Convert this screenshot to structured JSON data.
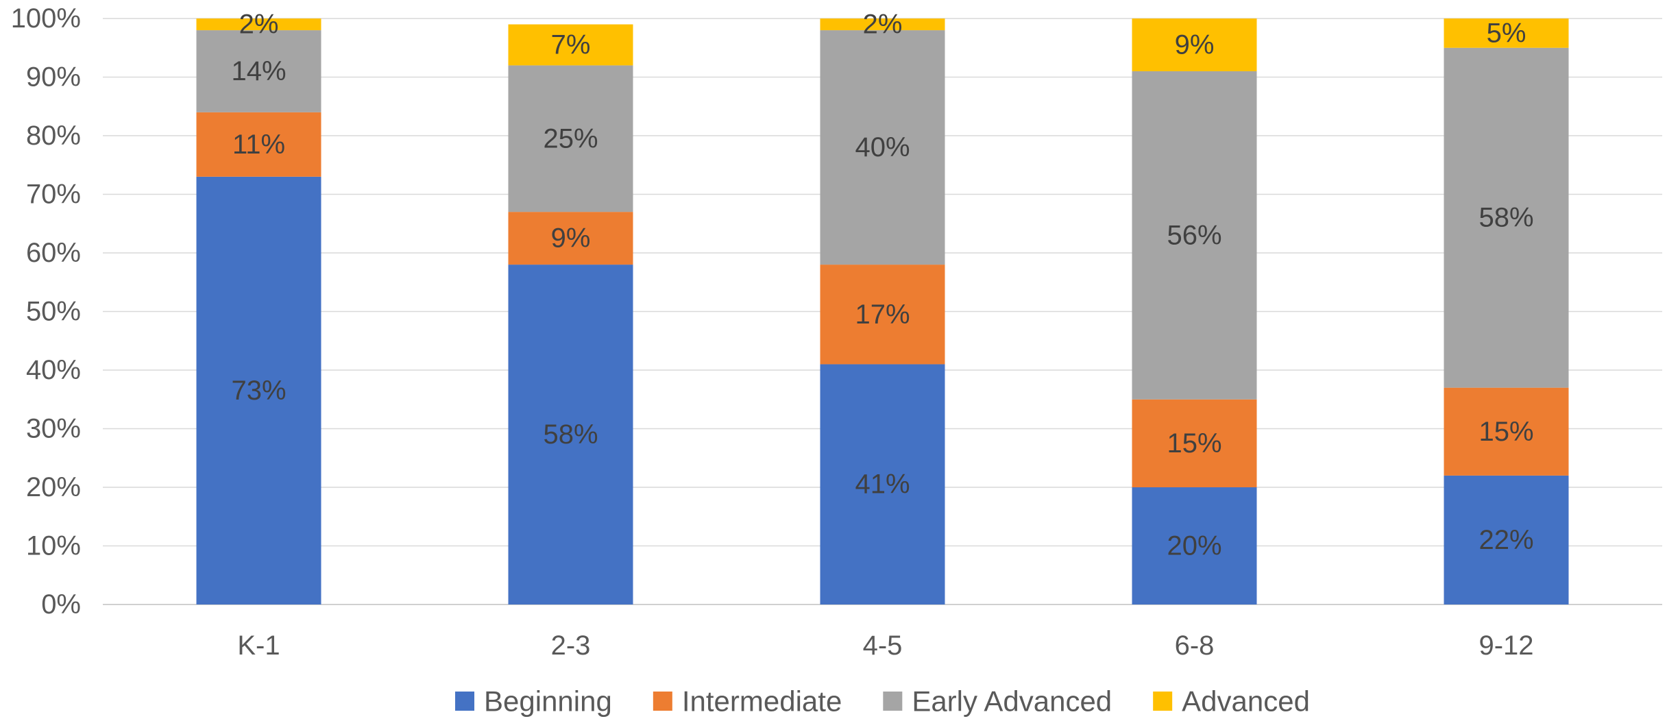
{
  "chart_data": {
    "type": "bar",
    "stacked": true,
    "percent": true,
    "title": "",
    "xlabel": "",
    "ylabel": "",
    "categories": [
      "K-1",
      "2-3",
      "4-5",
      "6-8",
      "9-12"
    ],
    "series": [
      {
        "name": "Beginning",
        "values": [
          73,
          58,
          41,
          20,
          22
        ],
        "color": "#4472C4"
      },
      {
        "name": "Intermediate",
        "values": [
          11,
          9,
          17,
          15,
          15
        ],
        "color": "#ED7D31"
      },
      {
        "name": "Early Advanced",
        "values": [
          14,
          25,
          40,
          56,
          58
        ],
        "color": "#A5A5A5"
      },
      {
        "name": "Advanced",
        "values": [
          2,
          7,
          2,
          9,
          5
        ],
        "color": "#FFC000"
      }
    ],
    "data_labels": [
      [
        "73%",
        "58%",
        "41%",
        "20%",
        "22%"
      ],
      [
        "11%",
        "9%",
        "17%",
        "15%",
        "15%"
      ],
      [
        "14%",
        "25%",
        "40%",
        "56%",
        "58%"
      ],
      [
        "2%",
        "7%",
        "2%",
        "9%",
        "5%"
      ]
    ],
    "ylim": [
      0,
      100
    ],
    "yticks": [
      "0%",
      "10%",
      "20%",
      "30%",
      "40%",
      "50%",
      "60%",
      "70%",
      "80%",
      "90%",
      "100%"
    ],
    "grid": true,
    "legend_position": "bottom"
  }
}
